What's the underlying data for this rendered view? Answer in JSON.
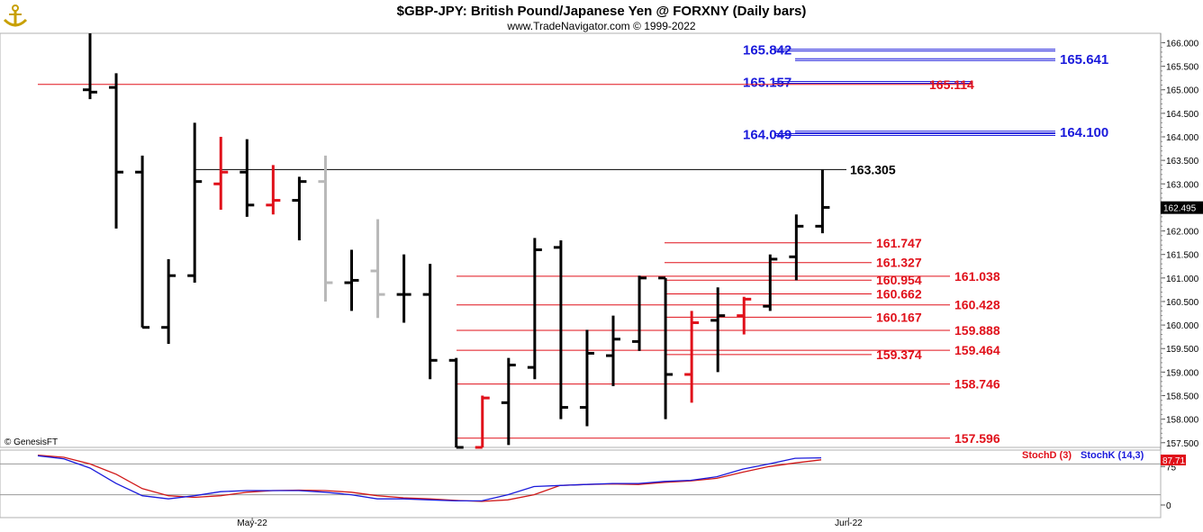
{
  "chart_data": {
    "type": "ohlc-bar",
    "title": "$GBP-JPY:  British Pound/Japanese Yen @ FORXNY  (Daily bars)",
    "subtitle": "www.TradeNavigator.com © 1999-2022",
    "copyright": "© GenesisFT",
    "ylim": [
      157.4,
      166.2
    ],
    "y_ticks": [
      "166.000",
      "165.500",
      "165.000",
      "164.500",
      "164.000",
      "163.500",
      "163.000",
      "162.500",
      "162.000",
      "161.500",
      "161.000",
      "160.500",
      "160.000",
      "159.500",
      "159.000",
      "158.500",
      "158.000",
      "157.500"
    ],
    "last_price": "162.495",
    "x_labels": [
      {
        "label": "May-22",
        "bar": 6.2
      },
      {
        "label": "Jun-22",
        "bar": 29
      }
    ],
    "bars": [
      {
        "o": 165.0,
        "h": 166.3,
        "l": 164.8,
        "c": 164.95,
        "color": "black"
      },
      {
        "o": 165.05,
        "h": 165.35,
        "l": 162.05,
        "c": 163.25,
        "color": "black"
      },
      {
        "o": 163.25,
        "h": 163.6,
        "l": 159.95,
        "c": 159.95,
        "color": "black"
      },
      {
        "o": 159.95,
        "h": 161.4,
        "l": 159.6,
        "c": 161.05,
        "color": "black"
      },
      {
        "o": 161.05,
        "h": 164.3,
        "l": 160.9,
        "c": 163.05,
        "color": "black"
      },
      {
        "o": 163.0,
        "h": 164.0,
        "l": 162.45,
        "c": 163.25,
        "color": "red"
      },
      {
        "o": 163.25,
        "h": 163.95,
        "l": 162.3,
        "c": 162.55,
        "color": "black"
      },
      {
        "o": 162.55,
        "h": 163.4,
        "l": 162.35,
        "c": 162.65,
        "color": "red"
      },
      {
        "o": 162.65,
        "h": 163.15,
        "l": 161.8,
        "c": 163.05,
        "color": "black"
      },
      {
        "o": 163.05,
        "h": 163.6,
        "l": 160.5,
        "c": 160.9,
        "color": "gray"
      },
      {
        "o": 160.9,
        "h": 161.6,
        "l": 160.3,
        "c": 160.95,
        "color": "black"
      },
      {
        "o": 161.15,
        "h": 162.25,
        "l": 160.15,
        "c": 160.65,
        "color": "gray"
      },
      {
        "o": 160.65,
        "h": 161.5,
        "l": 160.05,
        "c": 160.65,
        "color": "black"
      },
      {
        "o": 160.65,
        "h": 161.3,
        "l": 158.85,
        "c": 159.25,
        "color": "black"
      },
      {
        "o": 159.25,
        "h": 159.3,
        "l": 157.2,
        "c": 157.4,
        "color": "black"
      },
      {
        "o": 157.4,
        "h": 158.5,
        "l": 157.2,
        "c": 158.45,
        "color": "red"
      },
      {
        "o": 158.35,
        "h": 159.3,
        "l": 157.45,
        "c": 159.15,
        "color": "black"
      },
      {
        "o": 159.1,
        "h": 161.85,
        "l": 158.85,
        "c": 161.6,
        "color": "black"
      },
      {
        "o": 161.65,
        "h": 161.8,
        "l": 158.0,
        "c": 158.25,
        "color": "black"
      },
      {
        "o": 158.25,
        "h": 159.9,
        "l": 157.85,
        "c": 159.4,
        "color": "black"
      },
      {
        "o": 159.35,
        "h": 160.2,
        "l": 158.7,
        "c": 159.7,
        "color": "black"
      },
      {
        "o": 159.65,
        "h": 161.05,
        "l": 159.45,
        "c": 161.0,
        "color": "black"
      },
      {
        "o": 161.0,
        "h": 161.0,
        "l": 158.0,
        "c": 158.95,
        "color": "black"
      },
      {
        "o": 158.95,
        "h": 160.3,
        "l": 158.35,
        "c": 160.05,
        "color": "red"
      },
      {
        "o": 160.1,
        "h": 160.8,
        "l": 159.0,
        "c": 160.2,
        "color": "black"
      },
      {
        "o": 160.2,
        "h": 160.6,
        "l": 159.8,
        "c": 160.55,
        "color": "red"
      },
      {
        "o": 160.4,
        "h": 161.5,
        "l": 160.3,
        "c": 161.4,
        "color": "black"
      },
      {
        "o": 161.45,
        "h": 162.35,
        "l": 160.95,
        "c": 162.1,
        "color": "black"
      },
      {
        "o": 162.1,
        "h": 163.3,
        "l": 161.95,
        "c": 162.5,
        "color": "black"
      }
    ],
    "levels": [
      {
        "value": 165.842,
        "label": "165.842",
        "color": "blue",
        "x1": 860,
        "x2": 1172,
        "side": "left"
      },
      {
        "value": 165.641,
        "label": "165.641",
        "color": "blue",
        "x1": 883,
        "x2": 1172,
        "side": "right"
      },
      {
        "value": 165.157,
        "label": "165.157",
        "color": "blue",
        "x1": 860,
        "x2": 1080,
        "side": "left"
      },
      {
        "value": 165.114,
        "label": "165.114",
        "color": "red",
        "x1": 42,
        "x2": 1080,
        "side": "right-red"
      },
      {
        "value": 164.1,
        "label": "164.100",
        "color": "blue",
        "x1": 883,
        "x2": 1172,
        "side": "right"
      },
      {
        "value": 164.049,
        "label": "164.049",
        "color": "blue",
        "x1": 860,
        "x2": 1172,
        "side": "left"
      },
      {
        "value": 163.305,
        "label": "163.305",
        "color": "black",
        "x1": 215,
        "x2": 940,
        "side": "right"
      },
      {
        "value": 161.747,
        "label": "161.747",
        "color": "red",
        "x1": 738,
        "x2": 968,
        "side": "right"
      },
      {
        "value": 161.327,
        "label": "161.327",
        "color": "red",
        "x1": 738,
        "x2": 968,
        "side": "right"
      },
      {
        "value": 161.038,
        "label": "161.038",
        "color": "red",
        "x1": 507,
        "x2": 1055,
        "side": "right"
      },
      {
        "value": 160.954,
        "label": "160.954",
        "color": "red",
        "x1": 738,
        "x2": 968,
        "side": "right"
      },
      {
        "value": 160.662,
        "label": "160.662",
        "color": "red",
        "x1": 738,
        "x2": 968,
        "side": "right"
      },
      {
        "value": 160.428,
        "label": "160.428",
        "color": "red",
        "x1": 507,
        "x2": 1055,
        "side": "right"
      },
      {
        "value": 160.167,
        "label": "160.167",
        "color": "red",
        "x1": 738,
        "x2": 968,
        "side": "right"
      },
      {
        "value": 159.888,
        "label": "159.888",
        "color": "red",
        "x1": 507,
        "x2": 1055,
        "side": "right"
      },
      {
        "value": 159.464,
        "label": "159.464",
        "color": "red",
        "x1": 507,
        "x2": 1055,
        "side": "right"
      },
      {
        "value": 159.374,
        "label": "159.374",
        "color": "red",
        "x1": 738,
        "x2": 968,
        "side": "right"
      },
      {
        "value": 158.746,
        "label": "158.746",
        "color": "red",
        "x1": 507,
        "x2": 1055,
        "side": "right"
      },
      {
        "value": 157.596,
        "label": "157.596",
        "color": "red",
        "x1": 507,
        "x2": 1055,
        "side": "right"
      }
    ],
    "stochastic": {
      "ylim": [
        0,
        100
      ],
      "y_ticks": [
        "75",
        "0"
      ],
      "last_value": "87.71",
      "stoch_d_label": "StochD (3)",
      "stoch_k_label": "StochK (14,3)",
      "stoch_d": [
        97,
        93,
        80,
        60,
        32,
        18,
        15,
        18,
        25,
        28,
        29,
        28,
        25,
        18,
        14,
        12,
        9,
        7,
        10,
        20,
        38,
        40,
        41,
        40,
        44,
        47,
        52,
        64,
        75,
        82,
        88
      ],
      "stoch_k": [
        96,
        90,
        72,
        42,
        18,
        12,
        18,
        26,
        28,
        28,
        28,
        25,
        20,
        12,
        12,
        10,
        8,
        8,
        20,
        36,
        38,
        40,
        42,
        42,
        46,
        48,
        55,
        70,
        80,
        91,
        92
      ]
    }
  }
}
